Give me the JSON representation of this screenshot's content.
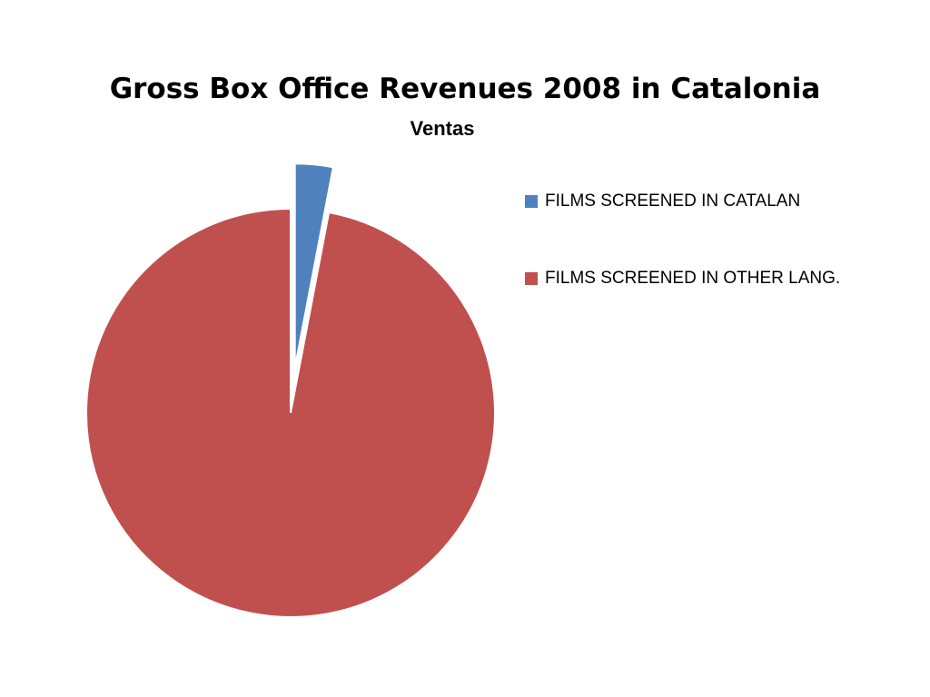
{
  "chart_data": {
    "type": "pie",
    "title": "Gross Box Office Revenues 2008 in Catalonia",
    "subtitle": "Ventas",
    "categories": [
      "FILMS SCREENED IN CATALAN",
      "FILMS SCREENED IN OTHER LANG."
    ],
    "values": [
      3,
      97
    ],
    "colors": [
      "#4f81bd",
      "#c0504d"
    ],
    "legend": "right"
  }
}
